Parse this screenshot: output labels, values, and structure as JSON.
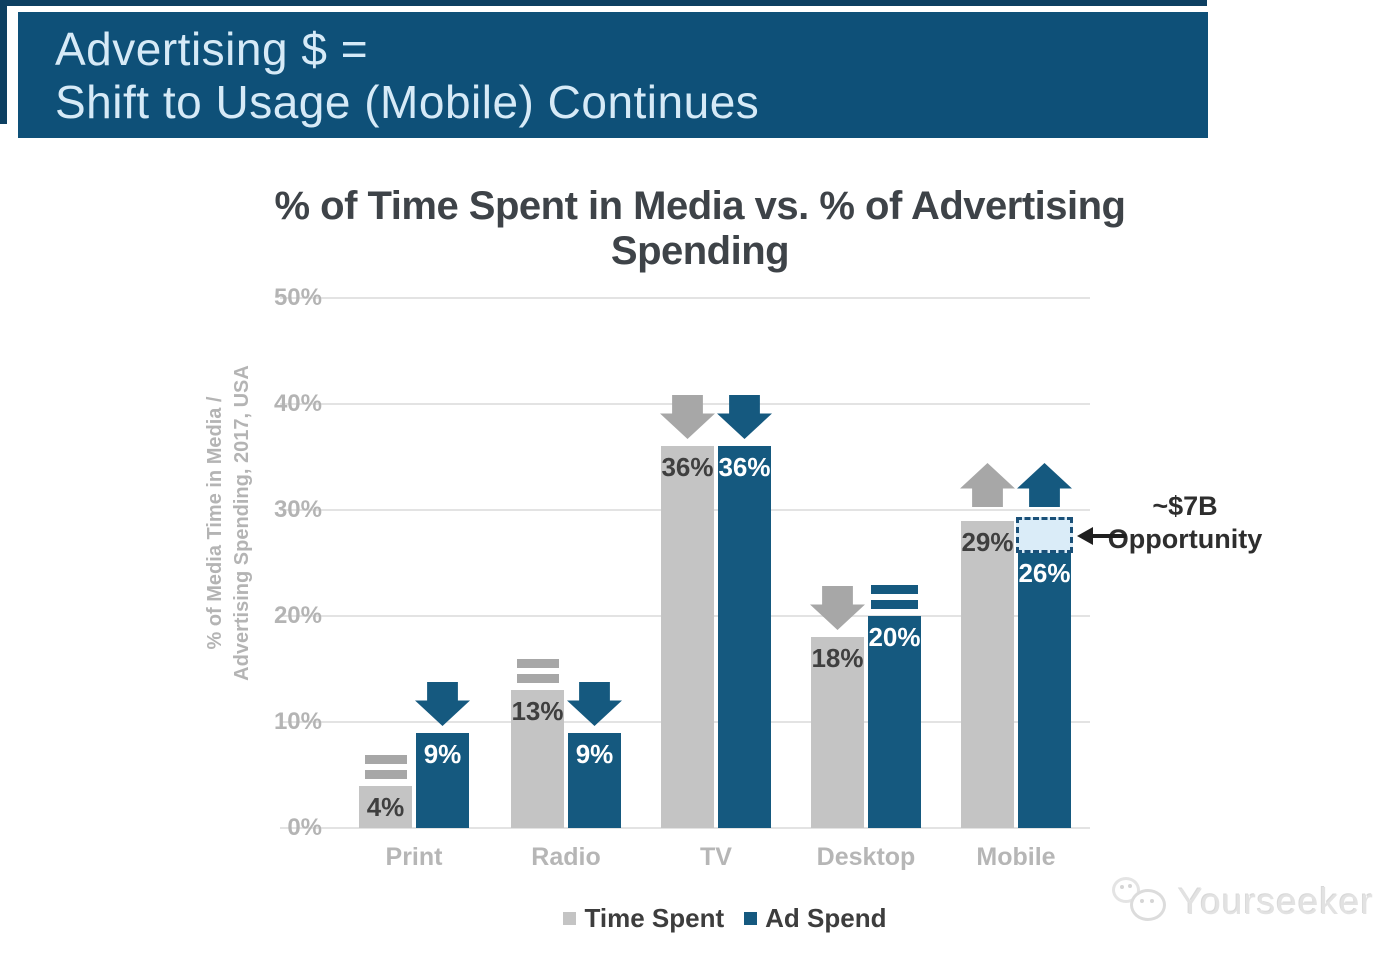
{
  "header": {
    "line1": "Advertising $ =",
    "line2": "Shift to Usage (Mobile) Continues"
  },
  "chart_data": {
    "type": "bar",
    "title": "% of Time Spent in Media vs. % of Advertising Spending",
    "ylabel_line1": "% of Media Time in Media /",
    "ylabel_line2": "Advertising Spending, 2017, USA",
    "categories": [
      "Print",
      "Radio",
      "TV",
      "Desktop",
      "Mobile"
    ],
    "series": [
      {
        "name": "Time Spent",
        "values": [
          4,
          13,
          36,
          18,
          29
        ],
        "labels": [
          "4%",
          "13%",
          "36%",
          "18%",
          "29%"
        ],
        "trends": [
          "equals",
          "equals",
          "down",
          "down",
          "up"
        ]
      },
      {
        "name": "Ad Spend",
        "values": [
          9,
          9,
          36,
          20,
          26
        ],
        "labels": [
          "9%",
          "9%",
          "36%",
          "20%",
          "26%"
        ],
        "trends": [
          "down",
          "down",
          "down",
          "equals",
          "up"
        ]
      }
    ],
    "y_ticks": [
      "0%",
      "10%",
      "20%",
      "30%",
      "40%",
      "50%"
    ],
    "y_tick_values": [
      0,
      10,
      20,
      30,
      40,
      50
    ],
    "ylim": [
      0,
      50
    ],
    "grid": true,
    "legend_position": "bottom"
  },
  "annotation": {
    "value": "~$7B",
    "label": "Opportunity",
    "target_category": "Mobile"
  },
  "legend": {
    "items": [
      {
        "label": "Time Spent"
      },
      {
        "label": "Ad Spend"
      }
    ]
  },
  "watermark": {
    "text": "Yourseeker"
  },
  "colors": {
    "header_bg": "#0e5078",
    "header_text": "#d6eaf7",
    "bar_blue": "#15597f",
    "bar_gray": "#c4c4c4",
    "trend_gray": "#a7a7a7",
    "label_on_gray": "#3f3f3f",
    "label_on_blue": "#ffffff",
    "opportunity_fill": "#daecf8",
    "opportunity_border": "#1a5078",
    "grid": "#e3e3e3",
    "axis_text": "#b4b4b4",
    "title_text": "#3e4348",
    "legend_text": "#3d3d3d",
    "annotation_text": "#2e2e2e"
  }
}
